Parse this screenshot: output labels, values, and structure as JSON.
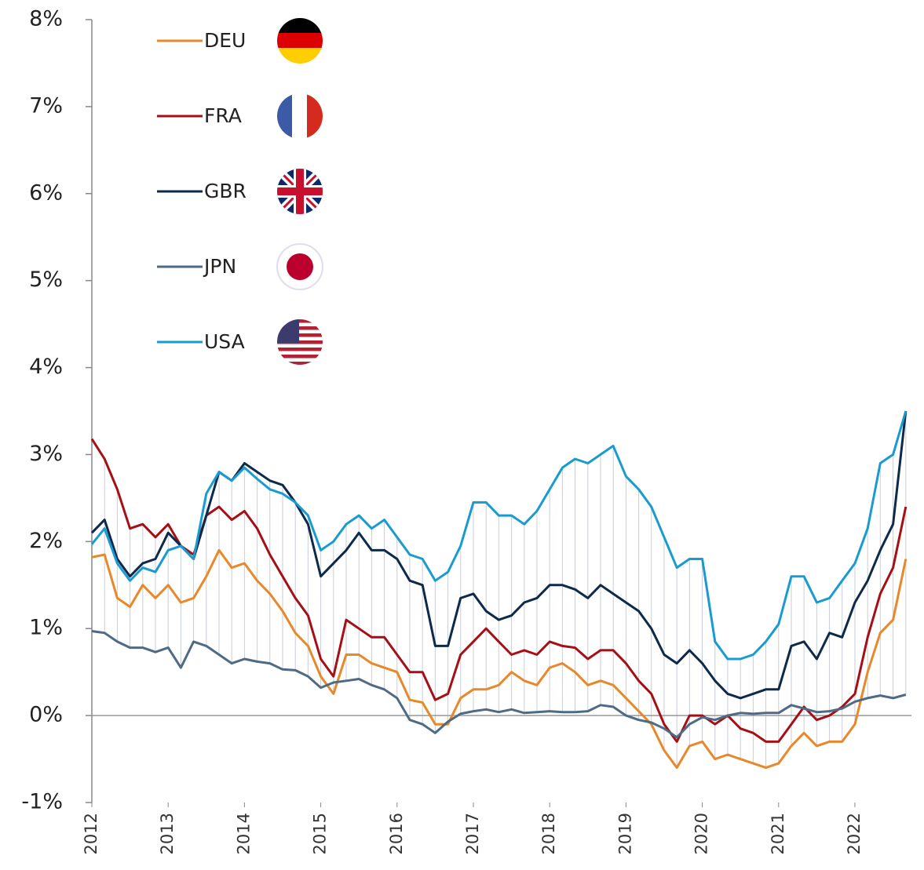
{
  "chart_data": {
    "type": "line",
    "x": [
      2012,
      2012.167,
      2012.333,
      2012.5,
      2012.667,
      2012.833,
      2013,
      2013.167,
      2013.333,
      2013.5,
      2013.667,
      2013.833,
      2014,
      2014.167,
      2014.333,
      2014.5,
      2014.667,
      2014.833,
      2015,
      2015.167,
      2015.333,
      2015.5,
      2015.667,
      2015.833,
      2016,
      2016.167,
      2016.333,
      2016.5,
      2016.667,
      2016.833,
      2017,
      2017.167,
      2017.333,
      2017.5,
      2017.667,
      2017.833,
      2018,
      2018.167,
      2018.333,
      2018.5,
      2018.667,
      2018.833,
      2019,
      2019.167,
      2019.333,
      2019.5,
      2019.667,
      2019.833,
      2020,
      2020.167,
      2020.333,
      2020.5,
      2020.667,
      2020.833,
      2021,
      2021.167,
      2021.333,
      2021.5,
      2021.667,
      2021.833,
      2022,
      2022.167,
      2022.333,
      2022.5,
      2022.667
    ],
    "series": [
      {
        "name": "DEU",
        "color": "#e8882a",
        "values": [
          1.82,
          1.85,
          1.35,
          1.25,
          1.5,
          1.35,
          1.5,
          1.3,
          1.35,
          1.6,
          1.9,
          1.7,
          1.75,
          1.55,
          1.4,
          1.2,
          0.95,
          0.8,
          0.45,
          0.25,
          0.7,
          0.7,
          0.6,
          0.55,
          0.5,
          0.18,
          0.15,
          -0.1,
          -0.1,
          0.2,
          0.3,
          0.3,
          0.35,
          0.5,
          0.4,
          0.35,
          0.55,
          0.6,
          0.5,
          0.35,
          0.4,
          0.35,
          0.2,
          0.05,
          -0.1,
          -0.4,
          -0.6,
          -0.35,
          -0.3,
          -0.5,
          -0.45,
          -0.5,
          -0.55,
          -0.6,
          -0.55,
          -0.35,
          -0.2,
          -0.35,
          -0.3,
          -0.3,
          -0.1,
          0.5,
          0.95,
          1.1,
          1.8
        ]
      },
      {
        "name": "FRA",
        "color": "#a50f15",
        "values": [
          3.18,
          2.95,
          2.6,
          2.15,
          2.2,
          2.05,
          2.2,
          1.95,
          1.85,
          2.3,
          2.4,
          2.25,
          2.35,
          2.15,
          1.85,
          1.6,
          1.35,
          1.15,
          0.65,
          0.45,
          1.1,
          1.0,
          0.9,
          0.9,
          0.7,
          0.5,
          0.5,
          0.18,
          0.25,
          0.7,
          0.85,
          1.0,
          0.85,
          0.7,
          0.75,
          0.7,
          0.85,
          0.8,
          0.78,
          0.65,
          0.75,
          0.75,
          0.6,
          0.4,
          0.25,
          -0.1,
          -0.3,
          0.0,
          0.0,
          -0.1,
          0.0,
          -0.15,
          -0.2,
          -0.3,
          -0.3,
          -0.1,
          0.1,
          -0.05,
          0.0,
          0.1,
          0.25,
          0.9,
          1.4,
          1.7,
          2.4
        ]
      },
      {
        "name": "GBR",
        "color": "#0d2a4a",
        "values": [
          2.1,
          2.25,
          1.8,
          1.6,
          1.75,
          1.8,
          2.1,
          1.95,
          1.8,
          2.3,
          2.8,
          2.7,
          2.9,
          2.8,
          2.7,
          2.65,
          2.45,
          2.2,
          1.6,
          1.75,
          1.9,
          2.1,
          1.9,
          1.9,
          1.8,
          1.55,
          1.5,
          0.8,
          0.8,
          1.35,
          1.4,
          1.2,
          1.1,
          1.15,
          1.3,
          1.35,
          1.5,
          1.5,
          1.45,
          1.35,
          1.5,
          1.4,
          1.3,
          1.2,
          1.0,
          0.7,
          0.6,
          0.75,
          0.6,
          0.4,
          0.25,
          0.2,
          0.25,
          0.3,
          0.3,
          0.8,
          0.85,
          0.65,
          0.95,
          0.9,
          1.3,
          1.55,
          1.9,
          2.2,
          3.5
        ]
      },
      {
        "name": "JPN",
        "color": "#4e6a85",
        "values": [
          0.97,
          0.95,
          0.85,
          0.78,
          0.78,
          0.73,
          0.78,
          0.55,
          0.85,
          0.8,
          0.7,
          0.6,
          0.65,
          0.62,
          0.6,
          0.53,
          0.52,
          0.45,
          0.32,
          0.38,
          0.4,
          0.42,
          0.35,
          0.3,
          0.2,
          -0.05,
          -0.1,
          -0.2,
          -0.07,
          0.02,
          0.05,
          0.07,
          0.04,
          0.07,
          0.03,
          0.04,
          0.05,
          0.04,
          0.04,
          0.05,
          0.12,
          0.1,
          0.0,
          -0.05,
          -0.08,
          -0.15,
          -0.25,
          -0.1,
          -0.02,
          -0.05,
          0.0,
          0.03,
          0.02,
          0.03,
          0.03,
          0.12,
          0.08,
          0.04,
          0.05,
          0.08,
          0.16,
          0.2,
          0.23,
          0.2,
          0.24
        ]
      },
      {
        "name": "USA",
        "color": "#1a9bd0",
        "values": [
          1.97,
          2.15,
          1.75,
          1.55,
          1.7,
          1.65,
          1.9,
          1.95,
          1.8,
          2.55,
          2.8,
          2.7,
          2.85,
          2.72,
          2.6,
          2.55,
          2.45,
          2.3,
          1.9,
          2.0,
          2.2,
          2.3,
          2.15,
          2.25,
          2.05,
          1.85,
          1.8,
          1.55,
          1.65,
          1.95,
          2.45,
          2.45,
          2.3,
          2.3,
          2.2,
          2.35,
          2.6,
          2.85,
          2.95,
          2.9,
          3.0,
          3.1,
          2.75,
          2.6,
          2.4,
          2.05,
          1.7,
          1.8,
          1.8,
          0.85,
          0.65,
          0.65,
          0.7,
          0.85,
          1.05,
          1.6,
          1.6,
          1.3,
          1.35,
          1.55,
          1.75,
          2.15,
          2.9,
          3.0,
          3.5
        ]
      }
    ],
    "xlim": [
      2012,
      2022.7
    ],
    "xticks": [
      2012,
      2013,
      2014,
      2015,
      2016,
      2017,
      2018,
      2019,
      2020,
      2021,
      2022
    ],
    "ylim": [
      -1,
      8
    ],
    "yticks": [
      {
        "value": -1,
        "label": "-1%"
      },
      {
        "value": 0,
        "label": "0%"
      },
      {
        "value": 1,
        "label": "1%"
      },
      {
        "value": 2,
        "label": "2%"
      },
      {
        "value": 3,
        "label": "3%"
      },
      {
        "value": 4,
        "label": "4%"
      },
      {
        "value": 5,
        "label": "5%"
      },
      {
        "value": 6,
        "label": "6%"
      },
      {
        "value": 7,
        "label": "7%"
      },
      {
        "value": 8,
        "label": "8%"
      }
    ]
  }
}
